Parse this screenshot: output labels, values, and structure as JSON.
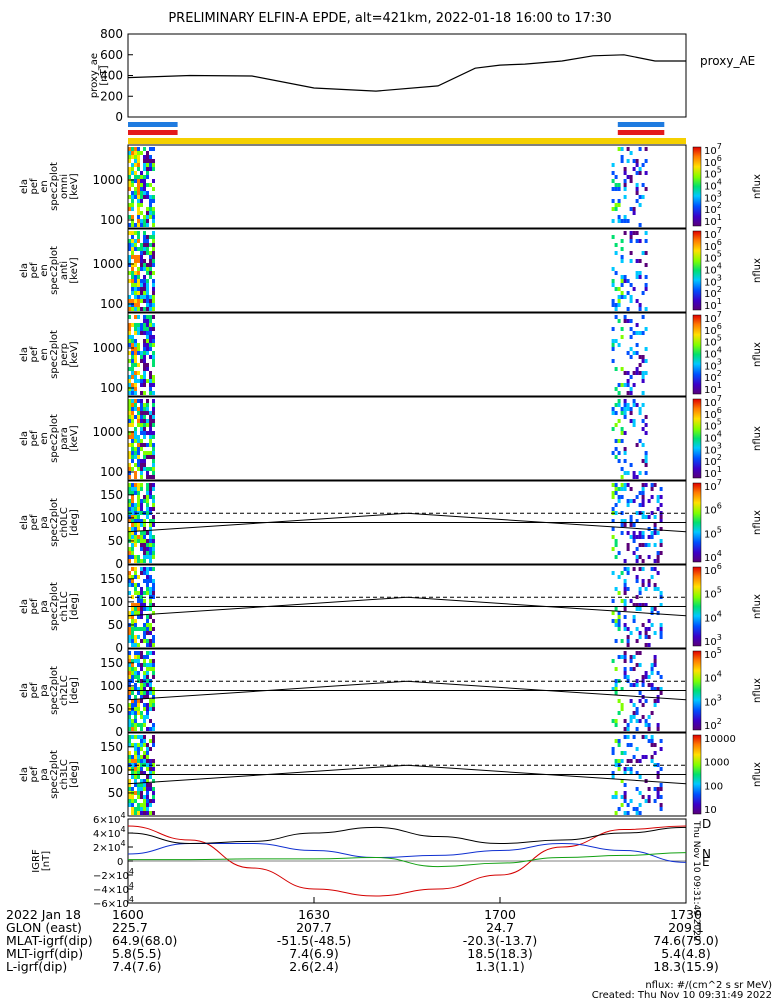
{
  "title": "PRELIMINARY ELFIN-A EPDE, alt=421km, 2022-01-18 16:00 to 17:30",
  "colors": {
    "bar_blue": "#1f7be0",
    "bar_red": "#e41a1c",
    "bar_yellow": "#f5d000",
    "red_trace": "#d40000",
    "blue_trace": "#1030d0",
    "green_trace": "#12a012"
  },
  "proxy_ae": {
    "ylabel": [
      "proxy_ae",
      "[nT]"
    ],
    "legend": "proxy_AE",
    "ticks": [
      "800",
      "600",
      "400",
      "200",
      "0"
    ],
    "ylim": [
      0,
      800
    ]
  },
  "energy_panels": [
    {
      "ylabel": [
        "ela",
        "pef",
        "en",
        "spec2plot",
        "omni",
        "[keV]"
      ],
      "ticks": [
        "1000",
        "100"
      ]
    },
    {
      "ylabel": [
        "ela",
        "pef",
        "en",
        "spec2plot",
        "anti",
        "[keV]"
      ],
      "ticks": [
        "1000",
        "100"
      ]
    },
    {
      "ylabel": [
        "ela",
        "pef",
        "en",
        "spec2plot",
        "perp",
        "[keV]"
      ],
      "ticks": [
        "1000",
        "100"
      ]
    },
    {
      "ylabel": [
        "ela",
        "pef",
        "en",
        "spec2plot",
        "para",
        "[keV]"
      ],
      "ticks": [
        "1000",
        "100"
      ]
    }
  ],
  "pitch_panels": [
    {
      "ylabel": [
        "ela",
        "pef",
        "pa",
        "spec2plot",
        "ch0LC",
        "[deg]"
      ],
      "ticks": [
        "150",
        "100",
        "50",
        "0"
      ]
    },
    {
      "ylabel": [
        "ela",
        "pef",
        "pa",
        "spec2plot",
        "ch1LC",
        "[deg]"
      ],
      "ticks": [
        "150",
        "100",
        "50",
        "0"
      ]
    },
    {
      "ylabel": [
        "ela",
        "pef",
        "pa",
        "spec2plot",
        "ch2LC",
        "[deg]"
      ],
      "ticks": [
        "150",
        "100",
        "50",
        "0"
      ]
    },
    {
      "ylabel": [
        "ela",
        "pef",
        "pa",
        "spec2plot",
        "ch3LC",
        "[deg]"
      ],
      "ticks": [
        "150",
        "100",
        "50"
      ]
    }
  ],
  "colorbars": [
    {
      "label": "nflux",
      "ticks": [
        "10^7",
        "10^6",
        "10^5",
        "10^4",
        "10^3",
        "10^2",
        "10^1"
      ]
    },
    {
      "label": "nflux",
      "ticks": [
        "10^7",
        "10^6",
        "10^5",
        "10^4",
        "10^3",
        "10^2",
        "10^1"
      ]
    },
    {
      "label": "nflux",
      "ticks": [
        "10^7",
        "10^6",
        "10^5",
        "10^4",
        "10^3",
        "10^2",
        "10^1"
      ]
    },
    {
      "label": "nflux",
      "ticks": [
        "10^7",
        "10^6",
        "10^5",
        "10^4",
        "10^3",
        "10^2",
        "10^1"
      ]
    },
    {
      "label": "nflux",
      "ticks": [
        "10^7",
        "10^6",
        "10^5",
        "10^4"
      ]
    },
    {
      "label": "nflux",
      "ticks": [
        "10^6",
        "10^5",
        "10^4",
        "10^3"
      ]
    },
    {
      "label": "nflux",
      "ticks": [
        "10^5",
        "10^4",
        "10^3",
        "10^2"
      ]
    },
    {
      "label": "nflux",
      "ticks": [
        "10000",
        "1000",
        "100",
        "10"
      ]
    }
  ],
  "igrf": {
    "ylabel": [
      "IGRF",
      "[nT]"
    ],
    "ticks": [
      "6×10^4",
      "4×10^4",
      "2×10^4",
      "0",
      "−2×10^4",
      "−4×10^4",
      "−6×10^4"
    ],
    "ylim": [
      -60000,
      60000
    ],
    "labels": {
      "d": "D",
      "n": "N",
      "e": "E"
    },
    "side_stamp": "Thu Nov 10 09:31:49 2022"
  },
  "chart_data": [
    {
      "type": "line",
      "title": "PRELIMINARY ELFIN-A EPDE, alt=421km, 2022-01-18 16:00 to 17:30",
      "ylabel": "proxy_ae [nT]",
      "ylim": [
        0,
        800
      ],
      "series": [
        {
          "name": "proxy_AE",
          "x": [
            0,
            10,
            20,
            30,
            40,
            50,
            56,
            60,
            64,
            70,
            75,
            80,
            85,
            90
          ],
          "values": [
            380,
            400,
            395,
            280,
            250,
            300,
            470,
            500,
            510,
            540,
            590,
            600,
            540,
            540
          ]
        }
      ]
    },
    {
      "type": "line",
      "ylabel": "IGRF [nT]",
      "ylim": [
        -60000,
        60000
      ],
      "series": [
        {
          "name": "D",
          "x": [
            0,
            10,
            20,
            30,
            40,
            50,
            60,
            70,
            80,
            90
          ],
          "values": [
            50000,
            30000,
            -10000,
            -40000,
            -50000,
            -40000,
            -20000,
            20000,
            45000,
            50000
          ]
        },
        {
          "name": "N",
          "x": [
            0,
            10,
            20,
            30,
            40,
            50,
            60,
            70,
            80,
            90
          ],
          "values": [
            10000,
            25000,
            25000,
            15000,
            5000,
            8000,
            15000,
            25000,
            15000,
            -2000
          ]
        },
        {
          "name": "E",
          "x": [
            0,
            10,
            20,
            30,
            40,
            50,
            60,
            70,
            80,
            90
          ],
          "values": [
            2000,
            2000,
            3000,
            3000,
            5000,
            -8000,
            -3000,
            5000,
            8000,
            12000
          ]
        },
        {
          "name": "",
          "x": [
            0,
            10,
            20,
            30,
            40,
            50,
            60,
            70,
            80,
            90
          ],
          "values": [
            40000,
            25000,
            28000,
            40000,
            48000,
            35000,
            25000,
            30000,
            40000,
            48000
          ]
        }
      ]
    }
  ],
  "time_axis": {
    "labels": [
      "1600",
      "1630",
      "1700",
      "1730"
    ],
    "minutes": [
      0,
      30,
      60,
      90
    ]
  },
  "footer": {
    "rows": [
      {
        "label": "2022 Jan 18",
        "values": [
          "1600",
          "1630",
          "1700",
          "1730"
        ]
      },
      {
        "label": "GLON (east)",
        "values": [
          "225.7",
          "207.7",
          "24.7",
          "209.1"
        ]
      },
      {
        "label": "MLAT-igrf(dip)",
        "values": [
          "64.9(68.0)",
          "-51.5(-48.5)",
          "-20.3(-13.7)",
          "74.6(75.0)"
        ]
      },
      {
        "label": "MLT-igrf(dip)",
        "values": [
          "5.8(5.5)",
          "7.4(6.9)",
          "18.5(18.3)",
          "5.4(4.8)"
        ]
      },
      {
        "label": "L-igrf(dip)",
        "values": [
          "7.4(7.6)",
          "2.6(2.4)",
          "1.3(1.1)",
          "18.3(15.9)"
        ]
      }
    ],
    "units_note": "nflux: #/(cm^2 s sr MeV)",
    "created": "Created: Thu Nov 10 09:31:49 2022"
  }
}
